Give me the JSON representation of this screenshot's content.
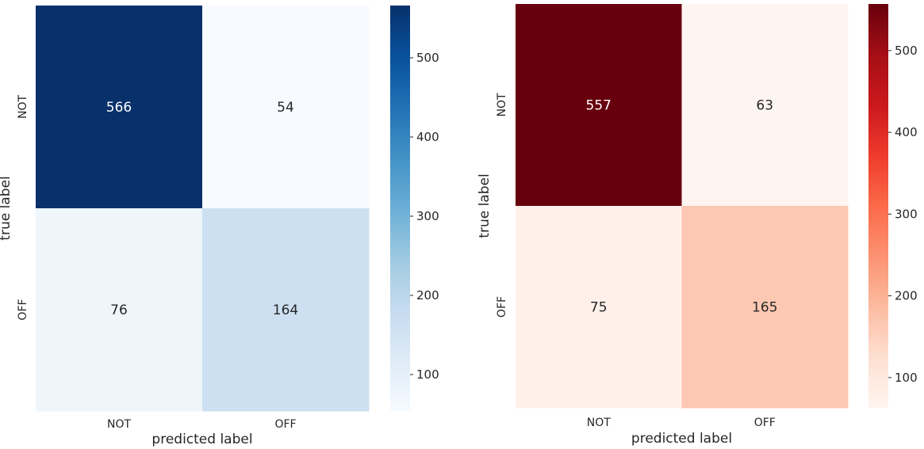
{
  "chart_data": [
    {
      "type": "heatmap",
      "colormap": "Blues",
      "row_labels": [
        "NOT",
        "OFF"
      ],
      "col_labels": [
        "NOT",
        "OFF"
      ],
      "values": [
        [
          566,
          54
        ],
        [
          76,
          164
        ]
      ],
      "xlabel": "predicted label",
      "ylabel": "true label",
      "colorbar": {
        "min": 54,
        "max": 566,
        "ticks": [
          100,
          200,
          300,
          400,
          500
        ]
      },
      "grid": false
    },
    {
      "type": "heatmap",
      "colormap": "Reds",
      "row_labels": [
        "NOT",
        "OFF"
      ],
      "col_labels": [
        "NOT",
        "OFF"
      ],
      "values": [
        [
          557,
          63
        ],
        [
          75,
          165
        ]
      ],
      "xlabel": "predicted label",
      "ylabel": "true label",
      "colorbar": {
        "min": 63,
        "max": 557,
        "ticks": [
          100,
          200,
          300,
          400,
          500
        ]
      },
      "grid": false
    }
  ]
}
